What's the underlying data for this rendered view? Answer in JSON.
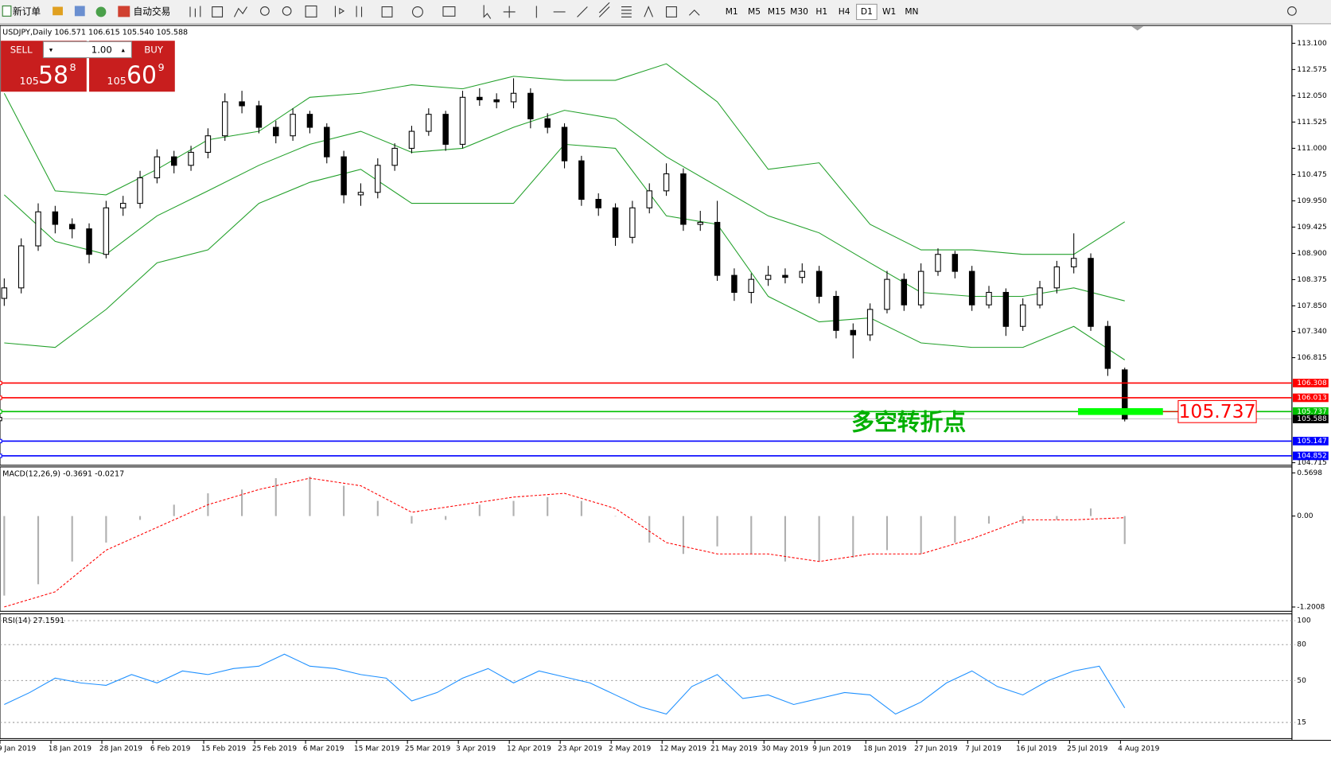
{
  "toolbar": {
    "new_order": "新订单",
    "auto_trading": "自动交易",
    "timeframes": [
      "M1",
      "M5",
      "M15",
      "M30",
      "H1",
      "H4",
      "D1",
      "W1",
      "MN"
    ],
    "active_timeframe": "D1"
  },
  "trade_panel": {
    "sell": "SELL",
    "buy": "BUY",
    "lots": "1.00",
    "sell_price": {
      "prefix": "105",
      "big": "58",
      "small": "8"
    },
    "buy_price": {
      "prefix": "105",
      "big": "60",
      "small": "9"
    }
  },
  "chart_data": [
    {
      "type": "candlestick",
      "title": "USDJPY,Daily  106.571 106.615 105.540 105.588",
      "ohlc": [
        [
          108.0,
          108.4,
          107.85,
          108.21
        ],
        [
          108.21,
          109.2,
          108.1,
          109.05
        ],
        [
          109.05,
          109.9,
          108.95,
          109.73
        ],
        [
          109.73,
          109.85,
          109.3,
          109.48
        ],
        [
          109.48,
          109.6,
          109.2,
          109.39
        ],
        [
          109.39,
          109.5,
          108.7,
          108.88
        ],
        [
          108.88,
          109.95,
          108.8,
          109.81
        ],
        [
          109.81,
          110.05,
          109.65,
          109.9
        ],
        [
          109.9,
          110.55,
          109.8,
          110.41
        ],
        [
          110.41,
          110.98,
          110.3,
          110.83
        ],
        [
          110.83,
          110.95,
          110.5,
          110.66
        ],
        [
          110.66,
          111.05,
          110.55,
          110.92
        ],
        [
          110.92,
          111.4,
          110.8,
          111.25
        ],
        [
          111.25,
          112.1,
          111.15,
          111.93
        ],
        [
          111.93,
          112.15,
          111.7,
          111.85
        ],
        [
          111.85,
          111.95,
          111.3,
          111.42
        ],
        [
          111.42,
          111.55,
          111.1,
          111.25
        ],
        [
          111.25,
          111.8,
          111.15,
          111.68
        ],
        [
          111.68,
          111.75,
          111.3,
          111.42
        ],
        [
          111.42,
          111.5,
          110.7,
          110.83
        ],
        [
          110.83,
          110.95,
          109.9,
          110.07
        ],
        [
          110.07,
          110.3,
          109.85,
          110.12
        ],
        [
          110.12,
          110.8,
          110.0,
          110.66
        ],
        [
          110.66,
          111.1,
          110.55,
          111.0
        ],
        [
          111.0,
          111.45,
          110.9,
          111.34
        ],
        [
          111.34,
          111.8,
          111.25,
          111.68
        ],
        [
          111.68,
          111.75,
          110.95,
          111.08
        ],
        [
          111.08,
          112.15,
          111.0,
          112.02
        ],
        [
          112.02,
          112.2,
          111.85,
          111.97
        ],
        [
          111.97,
          112.1,
          111.8,
          111.93
        ],
        [
          111.93,
          112.4,
          111.8,
          112.1
        ],
        [
          112.1,
          112.2,
          111.4,
          111.59
        ],
        [
          111.59,
          111.7,
          111.3,
          111.42
        ],
        [
          111.42,
          111.5,
          110.6,
          110.75
        ],
        [
          110.75,
          110.85,
          109.85,
          109.98
        ],
        [
          109.98,
          110.1,
          109.65,
          109.81
        ],
        [
          109.81,
          109.9,
          109.05,
          109.22
        ],
        [
          109.22,
          109.95,
          109.1,
          109.81
        ],
        [
          109.81,
          110.3,
          109.7,
          110.15
        ],
        [
          110.15,
          110.7,
          110.05,
          110.49
        ],
        [
          110.49,
          110.6,
          109.35,
          109.48
        ],
        [
          109.48,
          109.75,
          109.35,
          109.52
        ],
        [
          109.52,
          109.95,
          108.35,
          108.46
        ],
        [
          108.46,
          108.6,
          107.95,
          108.12
        ],
        [
          108.12,
          108.5,
          107.9,
          108.38
        ],
        [
          108.38,
          108.65,
          108.25,
          108.46
        ],
        [
          108.46,
          108.6,
          108.3,
          108.42
        ],
        [
          108.42,
          108.7,
          108.3,
          108.54
        ],
        [
          108.54,
          108.65,
          107.9,
          108.04
        ],
        [
          108.04,
          108.15,
          107.2,
          107.36
        ],
        [
          107.36,
          107.5,
          106.8,
          107.27
        ],
        [
          107.27,
          107.9,
          107.15,
          107.78
        ],
        [
          107.78,
          108.55,
          107.7,
          108.38
        ],
        [
          108.38,
          108.5,
          107.75,
          107.87
        ],
        [
          107.87,
          108.7,
          107.8,
          108.54
        ],
        [
          108.54,
          109.0,
          108.45,
          108.88
        ],
        [
          108.88,
          108.95,
          108.4,
          108.54
        ],
        [
          108.54,
          108.65,
          107.75,
          107.87
        ],
        [
          107.87,
          108.25,
          107.8,
          108.12
        ],
        [
          108.12,
          108.2,
          107.25,
          107.44
        ],
        [
          107.44,
          108.0,
          107.35,
          107.87
        ],
        [
          107.87,
          108.35,
          107.8,
          108.21
        ],
        [
          108.21,
          108.75,
          108.1,
          108.63
        ],
        [
          108.63,
          109.3,
          108.5,
          108.8
        ],
        [
          108.8,
          108.9,
          107.35,
          107.44
        ],
        [
          107.44,
          107.55,
          106.45,
          106.6
        ],
        [
          106.571,
          106.615,
          105.54,
          105.588
        ]
      ],
      "bands": [
        {
          "color": "#22a02a",
          "values": [
            112.1,
            110.15,
            110.07,
            110.58,
            111.17,
            111.34,
            112.02,
            112.1,
            112.27,
            112.19,
            112.44,
            112.36,
            112.36,
            112.69,
            111.93,
            110.58,
            110.71,
            109.48,
            108.97,
            108.97,
            108.88,
            108.88,
            109.53
          ]
        },
        {
          "color": "#22a02a",
          "values": [
            110.07,
            109.14,
            108.88,
            109.65,
            110.15,
            110.66,
            111.08,
            111.34,
            110.92,
            111.0,
            111.42,
            111.76,
            111.59,
            110.83,
            110.24,
            109.65,
            109.31,
            108.71,
            108.12,
            108.04,
            108.04,
            108.21,
            107.95
          ]
        },
        {
          "color": "#22a02a",
          "values": [
            107.11,
            107.02,
            107.78,
            108.71,
            108.97,
            109.9,
            110.32,
            110.58,
            109.9,
            109.9,
            109.9,
            111.08,
            111.0,
            109.65,
            109.48,
            108.04,
            107.53,
            107.61,
            107.11,
            107.02,
            107.02,
            107.44,
            106.77
          ]
        }
      ],
      "ylim": [
        104.664,
        113.456
      ],
      "yticks": [
        {
          "value": 113.1,
          "label": "113.100"
        },
        {
          "value": 112.575,
          "label": "112.575"
        },
        {
          "value": 112.05,
          "label": "112.050"
        },
        {
          "value": 111.525,
          "label": "111.525"
        },
        {
          "value": 111,
          "label": "111.000"
        },
        {
          "value": 110.475,
          "label": "110.475"
        },
        {
          "value": 109.95,
          "label": "109.950"
        },
        {
          "value": 109.425,
          "label": "109.425"
        },
        {
          "value": 108.9,
          "label": "108.900"
        },
        {
          "value": 108.375,
          "label": "108.375"
        },
        {
          "value": 107.85,
          "label": "107.850"
        },
        {
          "value": 107.34,
          "label": "107.340"
        },
        {
          "value": 106.815,
          "label": "106.815"
        },
        {
          "value": 104.715,
          "label": "104.715"
        }
      ],
      "levels": [
        {
          "value": 106.308,
          "label": "106.308",
          "color": "#ff0000"
        },
        {
          "value": 106.013,
          "label": "106.013",
          "color": "#ff0000"
        },
        {
          "value": 105.737,
          "label": "105.737",
          "color": "#00c000"
        },
        {
          "value": 105.588,
          "label": "105.588",
          "color": "#000000"
        },
        {
          "value": 105.147,
          "label": "105.147",
          "color": "#0000ff"
        },
        {
          "value": 104.852,
          "label": "104.852",
          "color": "#0000ff"
        }
      ],
      "marker": {
        "value": 105.737,
        "label": "105.737",
        "color": "#00ff00"
      },
      "annotation": {
        "text": "多空转折点",
        "color": "#00b000"
      },
      "x_labels": [
        "9 Jan 2019",
        "18 Jan 2019",
        "28 Jan 2019",
        "6 Feb 2019",
        "15 Feb 2019",
        "25 Feb 2019",
        "6 Mar 2019",
        "15 Mar 2019",
        "25 Mar 2019",
        "3 Apr 2019",
        "12 Apr 2019",
        "23 Apr 2019",
        "2 May 2019",
        "12 May 2019",
        "21 May 2019",
        "30 May 2019",
        "9 Jun 2019",
        "18 Jun 2019",
        "27 Jun 2019",
        "7 Jul 2019",
        "16 Jul 2019",
        "25 Jul 2019",
        "4 Aug 2019"
      ]
    },
    {
      "type": "macd",
      "title": "MACD(12,26,9) -0.3691 -0.0217",
      "histogram": {
        "color": "#b0b0b0",
        "values": [
          -1.05,
          -0.9,
          -0.6,
          -0.35,
          -0.05,
          0.15,
          0.3,
          0.35,
          0.5,
          0.52,
          0.4,
          0.2,
          -0.1,
          -0.05,
          0.15,
          0.2,
          0.25,
          0.2,
          0.0,
          -0.35,
          -0.5,
          -0.4,
          -0.5,
          -0.6,
          -0.6,
          -0.55,
          -0.45,
          -0.5,
          -0.35,
          -0.1,
          -0.1,
          -0.05,
          0.1,
          -0.3691
        ]
      },
      "signal": {
        "color": "#ff0000",
        "values": [
          -1.2,
          -1.0,
          -0.45,
          -0.15,
          0.15,
          0.35,
          0.5,
          0.4,
          0.05,
          0.15,
          0.25,
          0.3,
          0.1,
          -0.35,
          -0.5,
          -0.5,
          -0.6,
          -0.5,
          -0.5,
          -0.3,
          -0.05,
          -0.05,
          -0.0217
        ]
      },
      "ylim": [
        -1.257,
        0.637
      ],
      "yticks": [
        0.5698,
        {
          "value": 0,
          "label": "0.00"
        },
        -1.2008
      ]
    },
    {
      "type": "line",
      "title": "RSI(14) 27.1591",
      "color": "#1e90ff",
      "values": [
        30,
        40,
        52,
        48,
        46,
        55,
        48,
        58,
        55,
        60,
        62,
        72,
        62,
        60,
        55,
        52,
        33,
        40,
        52,
        60,
        48,
        58,
        53,
        48,
        38,
        28,
        22,
        45,
        55,
        35,
        38,
        30,
        35,
        40,
        38,
        22,
        32,
        48,
        58,
        45,
        38,
        50,
        58,
        62,
        27.1591
      ],
      "ylim": [
        1.5,
        105
      ],
      "yticks": [
        100,
        80,
        50,
        15
      ]
    }
  ]
}
